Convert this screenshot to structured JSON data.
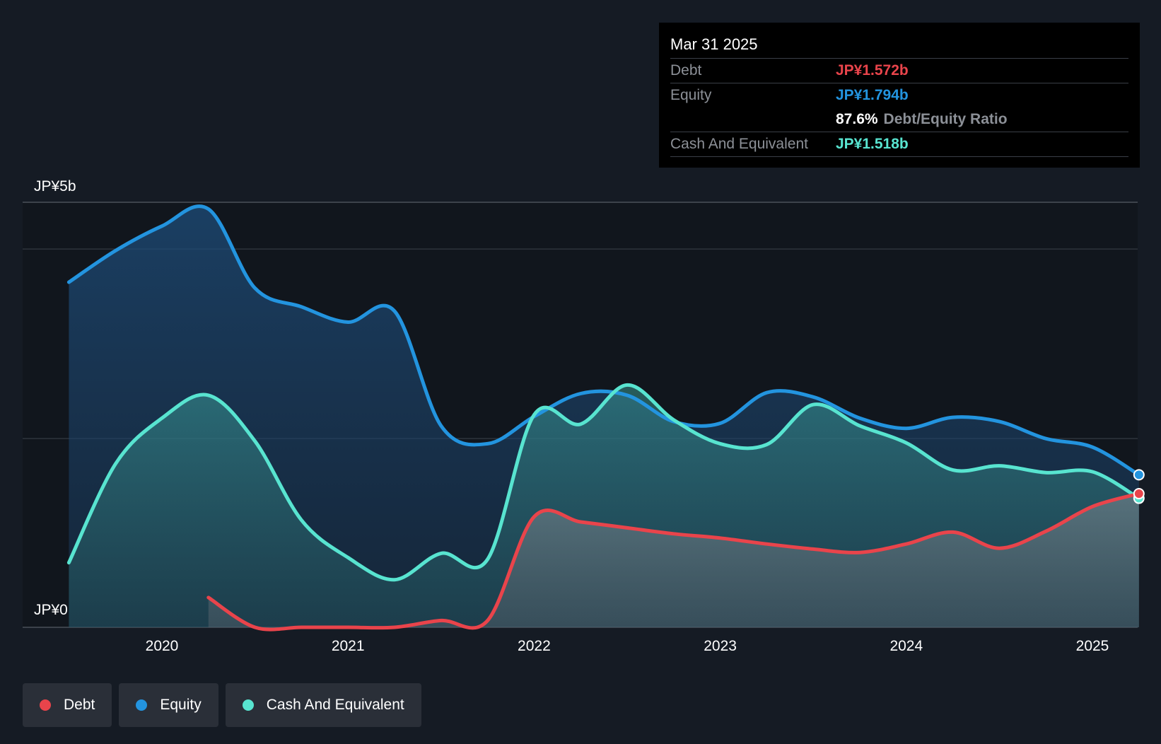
{
  "chart_data": {
    "type": "area",
    "y_axis": {
      "max_label": "JP¥5b",
      "min_label": "JP¥0",
      "ylim": [
        0,
        5
      ]
    },
    "x_axis": {
      "ticks": [
        "2020",
        "2021",
        "2022",
        "2023",
        "2024",
        "2025"
      ],
      "xlim": [
        2019.5,
        2025.25
      ]
    },
    "series": [
      {
        "name": "Equity",
        "color": "#2394df",
        "points": [
          [
            2019.5,
            4.06
          ],
          [
            2019.75,
            4.43
          ],
          [
            2020.0,
            4.72
          ],
          [
            2020.25,
            4.92
          ],
          [
            2020.5,
            3.99
          ],
          [
            2020.75,
            3.77
          ],
          [
            2021.0,
            3.59
          ],
          [
            2021.25,
            3.72
          ],
          [
            2021.5,
            2.37
          ],
          [
            2021.75,
            2.16
          ],
          [
            2022.0,
            2.48
          ],
          [
            2022.25,
            2.75
          ],
          [
            2022.5,
            2.73
          ],
          [
            2022.75,
            2.42
          ],
          [
            2023.0,
            2.4
          ],
          [
            2023.25,
            2.76
          ],
          [
            2023.5,
            2.71
          ],
          [
            2023.75,
            2.46
          ],
          [
            2024.0,
            2.34
          ],
          [
            2024.25,
            2.47
          ],
          [
            2024.5,
            2.42
          ],
          [
            2024.75,
            2.22
          ],
          [
            2025.0,
            2.12
          ],
          [
            2025.25,
            1.794
          ]
        ]
      },
      {
        "name": "Cash And Equivalent",
        "color": "#58e4d0",
        "points": [
          [
            2019.5,
            0.76
          ],
          [
            2019.75,
            1.92
          ],
          [
            2020.0,
            2.46
          ],
          [
            2020.25,
            2.73
          ],
          [
            2020.5,
            2.19
          ],
          [
            2020.75,
            1.26
          ],
          [
            2021.0,
            0.82
          ],
          [
            2021.25,
            0.56
          ],
          [
            2021.5,
            0.87
          ],
          [
            2021.75,
            0.8
          ],
          [
            2022.0,
            2.5
          ],
          [
            2022.25,
            2.39
          ],
          [
            2022.5,
            2.85
          ],
          [
            2022.75,
            2.44
          ],
          [
            2023.0,
            2.16
          ],
          [
            2023.25,
            2.15
          ],
          [
            2023.5,
            2.62
          ],
          [
            2023.75,
            2.37
          ],
          [
            2024.0,
            2.17
          ],
          [
            2024.25,
            1.85
          ],
          [
            2024.5,
            1.9
          ],
          [
            2024.75,
            1.82
          ],
          [
            2025.0,
            1.83
          ],
          [
            2025.25,
            1.518
          ]
        ]
      },
      {
        "name": "Debt",
        "color": "#e9444b",
        "points": [
          [
            2020.25,
            0.35
          ],
          [
            2020.5,
            0.0
          ],
          [
            2020.75,
            0.0
          ],
          [
            2021.0,
            0.0
          ],
          [
            2021.25,
            0.0
          ],
          [
            2021.5,
            0.08
          ],
          [
            2021.75,
            0.08
          ],
          [
            2022.0,
            1.3
          ],
          [
            2022.25,
            1.24
          ],
          [
            2022.5,
            1.17
          ],
          [
            2022.75,
            1.1
          ],
          [
            2023.0,
            1.05
          ],
          [
            2023.25,
            0.98
          ],
          [
            2023.5,
            0.92
          ],
          [
            2023.75,
            0.88
          ],
          [
            2024.0,
            0.98
          ],
          [
            2024.25,
            1.12
          ],
          [
            2024.5,
            0.93
          ],
          [
            2024.75,
            1.13
          ],
          [
            2025.0,
            1.42
          ],
          [
            2025.25,
            1.572
          ]
        ]
      }
    ]
  },
  "tooltip": {
    "date": "Mar 31 2025",
    "debt_label": "Debt",
    "debt_value": "JP¥1.572b",
    "debt_color": "#e9444b",
    "equity_label": "Equity",
    "equity_value": "JP¥1.794b",
    "equity_color": "#2394df",
    "ratio_value": "87.6%",
    "ratio_label": "Debt/Equity Ratio",
    "cash_label": "Cash And Equivalent",
    "cash_value": "JP¥1.518b",
    "cash_color": "#58e4d0"
  },
  "legend": [
    {
      "label": "Debt",
      "color": "#e9444b"
    },
    {
      "label": "Equity",
      "color": "#2394df"
    },
    {
      "label": "Cash And Equivalent",
      "color": "#58e4d0"
    }
  ]
}
